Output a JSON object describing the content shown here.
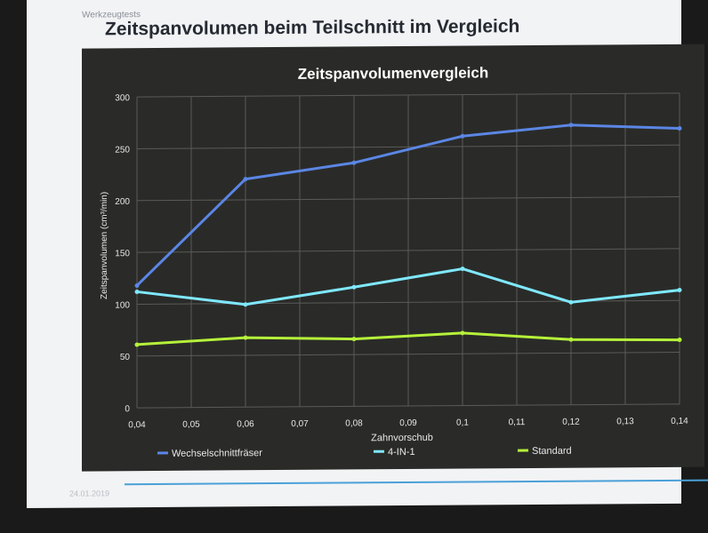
{
  "slide": {
    "breadcrumb": "Werkzeugtests",
    "title": "Zeitspanvolumen beim Teilschnitt im Vergleich",
    "footer_date": "24.01.2019"
  },
  "colors": {
    "panel_bg": "#2a2b28",
    "grid": "#5a5b58",
    "text": "#e8e8e8"
  },
  "chart_data": {
    "type": "line",
    "title": "Zeitspanvolumenvergleich",
    "xlabel": "Zahnvorschub",
    "ylabel": "Zeitspanvolumen (cm³/min)",
    "xlim": [
      0.04,
      0.14
    ],
    "ylim": [
      0,
      300
    ],
    "x_ticks": [
      "0,04",
      "0,05",
      "0,06",
      "0,07",
      "0,08",
      "0,09",
      "0,1",
      "0,11",
      "0,12",
      "0,13",
      "0,14"
    ],
    "y_ticks": [
      "0",
      "50",
      "100",
      "150",
      "200",
      "250",
      "300"
    ],
    "grid": true,
    "legend_position": "bottom",
    "series": [
      {
        "name": "Wechselschnittfräser",
        "color": "#5b86e5",
        "x": [
          0.04,
          0.06,
          0.08,
          0.1,
          0.12,
          0.14
        ],
        "y": [
          118,
          220,
          235,
          260,
          270,
          266
        ]
      },
      {
        "name": "4-IN-1",
        "color": "#7fe8ff",
        "x": [
          0.04,
          0.06,
          0.08,
          0.1,
          0.12,
          0.14
        ],
        "y": [
          112,
          99,
          115,
          132,
          99,
          110
        ]
      },
      {
        "name": "Standard",
        "color": "#b6f23a",
        "x": [
          0.04,
          0.06,
          0.08,
          0.1,
          0.12,
          0.14
        ],
        "y": [
          61,
          67,
          65,
          70,
          63,
          62
        ]
      }
    ]
  }
}
